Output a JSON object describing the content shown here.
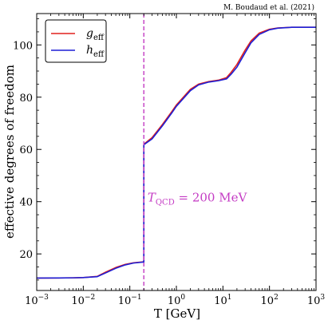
{
  "chart_data": {
    "type": "line",
    "credit": "M. Boudaud et al. (2021)",
    "xlabel": "T [GeV]",
    "ylabel": "effective degrees of freedom",
    "xscale": "log",
    "xlim": [
      0.001,
      1000
    ],
    "ylim": [
      6,
      112
    ],
    "x_ticks": [
      {
        "value": 0.001,
        "base": "10",
        "exp": "−3"
      },
      {
        "value": 0.01,
        "base": "10",
        "exp": "−2"
      },
      {
        "value": 0.1,
        "base": "10",
        "exp": "−1"
      },
      {
        "value": 1,
        "base": "10",
        "exp": "0"
      },
      {
        "value": 10,
        "base": "10",
        "exp": "1"
      },
      {
        "value": 100,
        "base": "10",
        "exp": "2"
      },
      {
        "value": 1000,
        "base": "10",
        "exp": "3"
      }
    ],
    "y_ticks": [
      20,
      40,
      60,
      80,
      100
    ],
    "grid": false,
    "legend": "top-left",
    "series": [
      {
        "name": "g_eff",
        "label_main": "g",
        "label_sub": "eff",
        "color": "#e0211d",
        "x": [
          0.001,
          0.003,
          0.006,
          0.01,
          0.02,
          0.03,
          0.05,
          0.08,
          0.12,
          0.2,
          0.2,
          0.3,
          0.5,
          0.8,
          1,
          2,
          3,
          5,
          8,
          12,
          15,
          20,
          30,
          40,
          60,
          100,
          150,
          300,
          1000
        ],
        "values": [
          10.75,
          10.8,
          10.85,
          10.95,
          11.4,
          13.0,
          14.8,
          16.0,
          16.6,
          17.0,
          62.0,
          64.5,
          69.5,
          74.5,
          77.0,
          83.0,
          85.0,
          86.0,
          86.5,
          87.5,
          89.5,
          92.5,
          98.0,
          101.5,
          104.5,
          106.0,
          106.5,
          106.75,
          106.75
        ]
      },
      {
        "name": "h_eff",
        "label_main": "h",
        "label_sub": "eff",
        "color": "#1d1fd6",
        "x": [
          0.001,
          0.003,
          0.006,
          0.01,
          0.02,
          0.03,
          0.05,
          0.08,
          0.12,
          0.2,
          0.2,
          0.3,
          0.5,
          0.8,
          1,
          2,
          3,
          5,
          8,
          12,
          15,
          20,
          30,
          40,
          60,
          100,
          150,
          300,
          1000
        ],
        "values": [
          10.75,
          10.8,
          10.85,
          10.95,
          11.3,
          12.7,
          14.5,
          15.8,
          16.5,
          16.9,
          61.8,
          64.0,
          69.0,
          74.0,
          76.5,
          82.5,
          84.7,
          85.8,
          86.3,
          87.0,
          88.8,
          91.5,
          97.0,
          100.8,
          104.0,
          105.8,
          106.4,
          106.75,
          106.75
        ]
      }
    ],
    "vline": {
      "x": 0.2,
      "color": "#c43cc4",
      "style": "dashed"
    },
    "annotation": {
      "main": "T",
      "sub": "QCD",
      "text": " = 200 MeV",
      "x": 0.24,
      "y": 40,
      "color": "#c43cc4"
    }
  }
}
